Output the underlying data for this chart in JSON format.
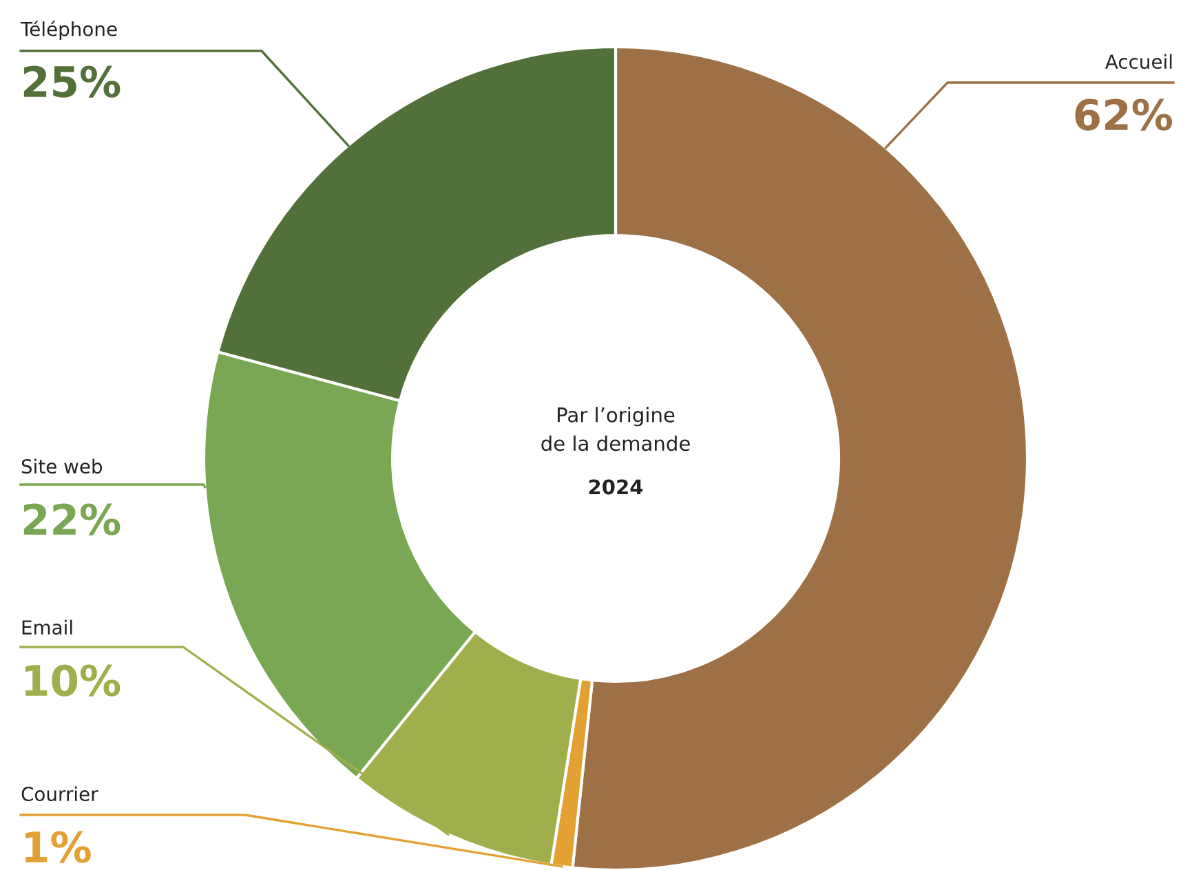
{
  "chart_data": {
    "type": "donut",
    "title": "Par l’origine\nde la demande",
    "subtitle": "2024",
    "categories": [
      "Accueil",
      "Courrier",
      "Email",
      "Site web",
      "Téléphone"
    ],
    "values": [
      62,
      1,
      10,
      22,
      25
    ],
    "value_labels": [
      "62%",
      "1%",
      "10%",
      "22%",
      "25%"
    ],
    "colors": [
      "#9e7046",
      "#e3a033",
      "#a0ae4c",
      "#79a753",
      "#527039"
    ],
    "legend": false
  }
}
